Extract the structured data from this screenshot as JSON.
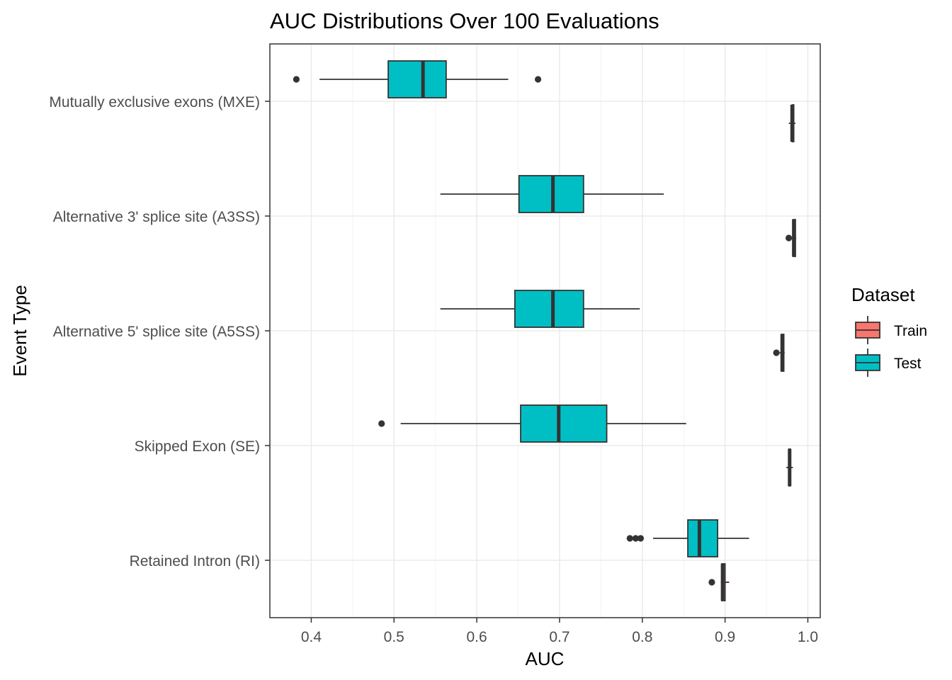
{
  "chart_data": {
    "type": "boxplot",
    "orientation": "horizontal",
    "title": "AUC Distributions Over 100 Evaluations",
    "xlabel": "AUC",
    "ylabel": "Event Type",
    "xlim": [
      0.35,
      1.015
    ],
    "x_ticks": [
      {
        "value": 0.4,
        "label": "0.4"
      },
      {
        "value": 0.5,
        "label": "0.5"
      },
      {
        "value": 0.6,
        "label": "0.6"
      },
      {
        "value": 0.7,
        "label": "0.7"
      },
      {
        "value": 0.8,
        "label": "0.8"
      },
      {
        "value": 0.9,
        "label": "0.9"
      },
      {
        "value": 1.0,
        "label": "1.0"
      }
    ],
    "grid": true,
    "legend": {
      "title": "Dataset",
      "position": "right",
      "entries": [
        {
          "name": "Train",
          "color": "#F8766D"
        },
        {
          "name": "Test",
          "color": "#00BFC4"
        }
      ]
    },
    "categories": [
      "Mutually exclusive exons (MXE)",
      "Alternative 3' splice site (A3SS)",
      "Alternative 5' splice site (A5SS)",
      "Skipped Exon (SE)",
      "Retained Intron (RI)"
    ],
    "series": [
      {
        "name": "Test",
        "color": "#00BFC4",
        "boxes": [
          {
            "min": 0.41,
            "q1": 0.493,
            "median": 0.535,
            "q3": 0.563,
            "max": 0.638,
            "outliers": [
              0.382,
              0.674
            ]
          },
          {
            "min": 0.556,
            "q1": 0.651,
            "median": 0.692,
            "q3": 0.729,
            "max": 0.826,
            "outliers": []
          },
          {
            "min": 0.556,
            "q1": 0.646,
            "median": 0.692,
            "q3": 0.729,
            "max": 0.797,
            "outliers": []
          },
          {
            "min": 0.508,
            "q1": 0.653,
            "median": 0.699,
            "q3": 0.757,
            "max": 0.853,
            "outliers": [
              0.485
            ]
          },
          {
            "min": 0.813,
            "q1": 0.855,
            "median": 0.869,
            "q3": 0.891,
            "max": 0.929,
            "outliers": [
              0.785,
              0.792,
              0.798
            ]
          }
        ]
      },
      {
        "name": "Train",
        "color": "#F8766D",
        "boxes": [
          {
            "min": 0.977,
            "q1": 0.981,
            "median": 0.981,
            "q3": 0.983,
            "max": 0.985,
            "outliers": []
          },
          {
            "min": 0.98,
            "q1": 0.982,
            "median": 0.983,
            "q3": 0.985,
            "max": 0.986,
            "outliers": [
              0.977
            ]
          },
          {
            "min": 0.966,
            "q1": 0.968,
            "median": 0.969,
            "q3": 0.971,
            "max": 0.972,
            "outliers": [
              0.962
            ]
          },
          {
            "min": 0.974,
            "q1": 0.977,
            "median": 0.978,
            "q3": 0.979,
            "max": 0.982,
            "outliers": []
          },
          {
            "min": 0.895,
            "q1": 0.896,
            "median": 0.897,
            "q3": 0.9,
            "max": 0.905,
            "outliers": [
              0.884
            ]
          }
        ]
      }
    ]
  }
}
